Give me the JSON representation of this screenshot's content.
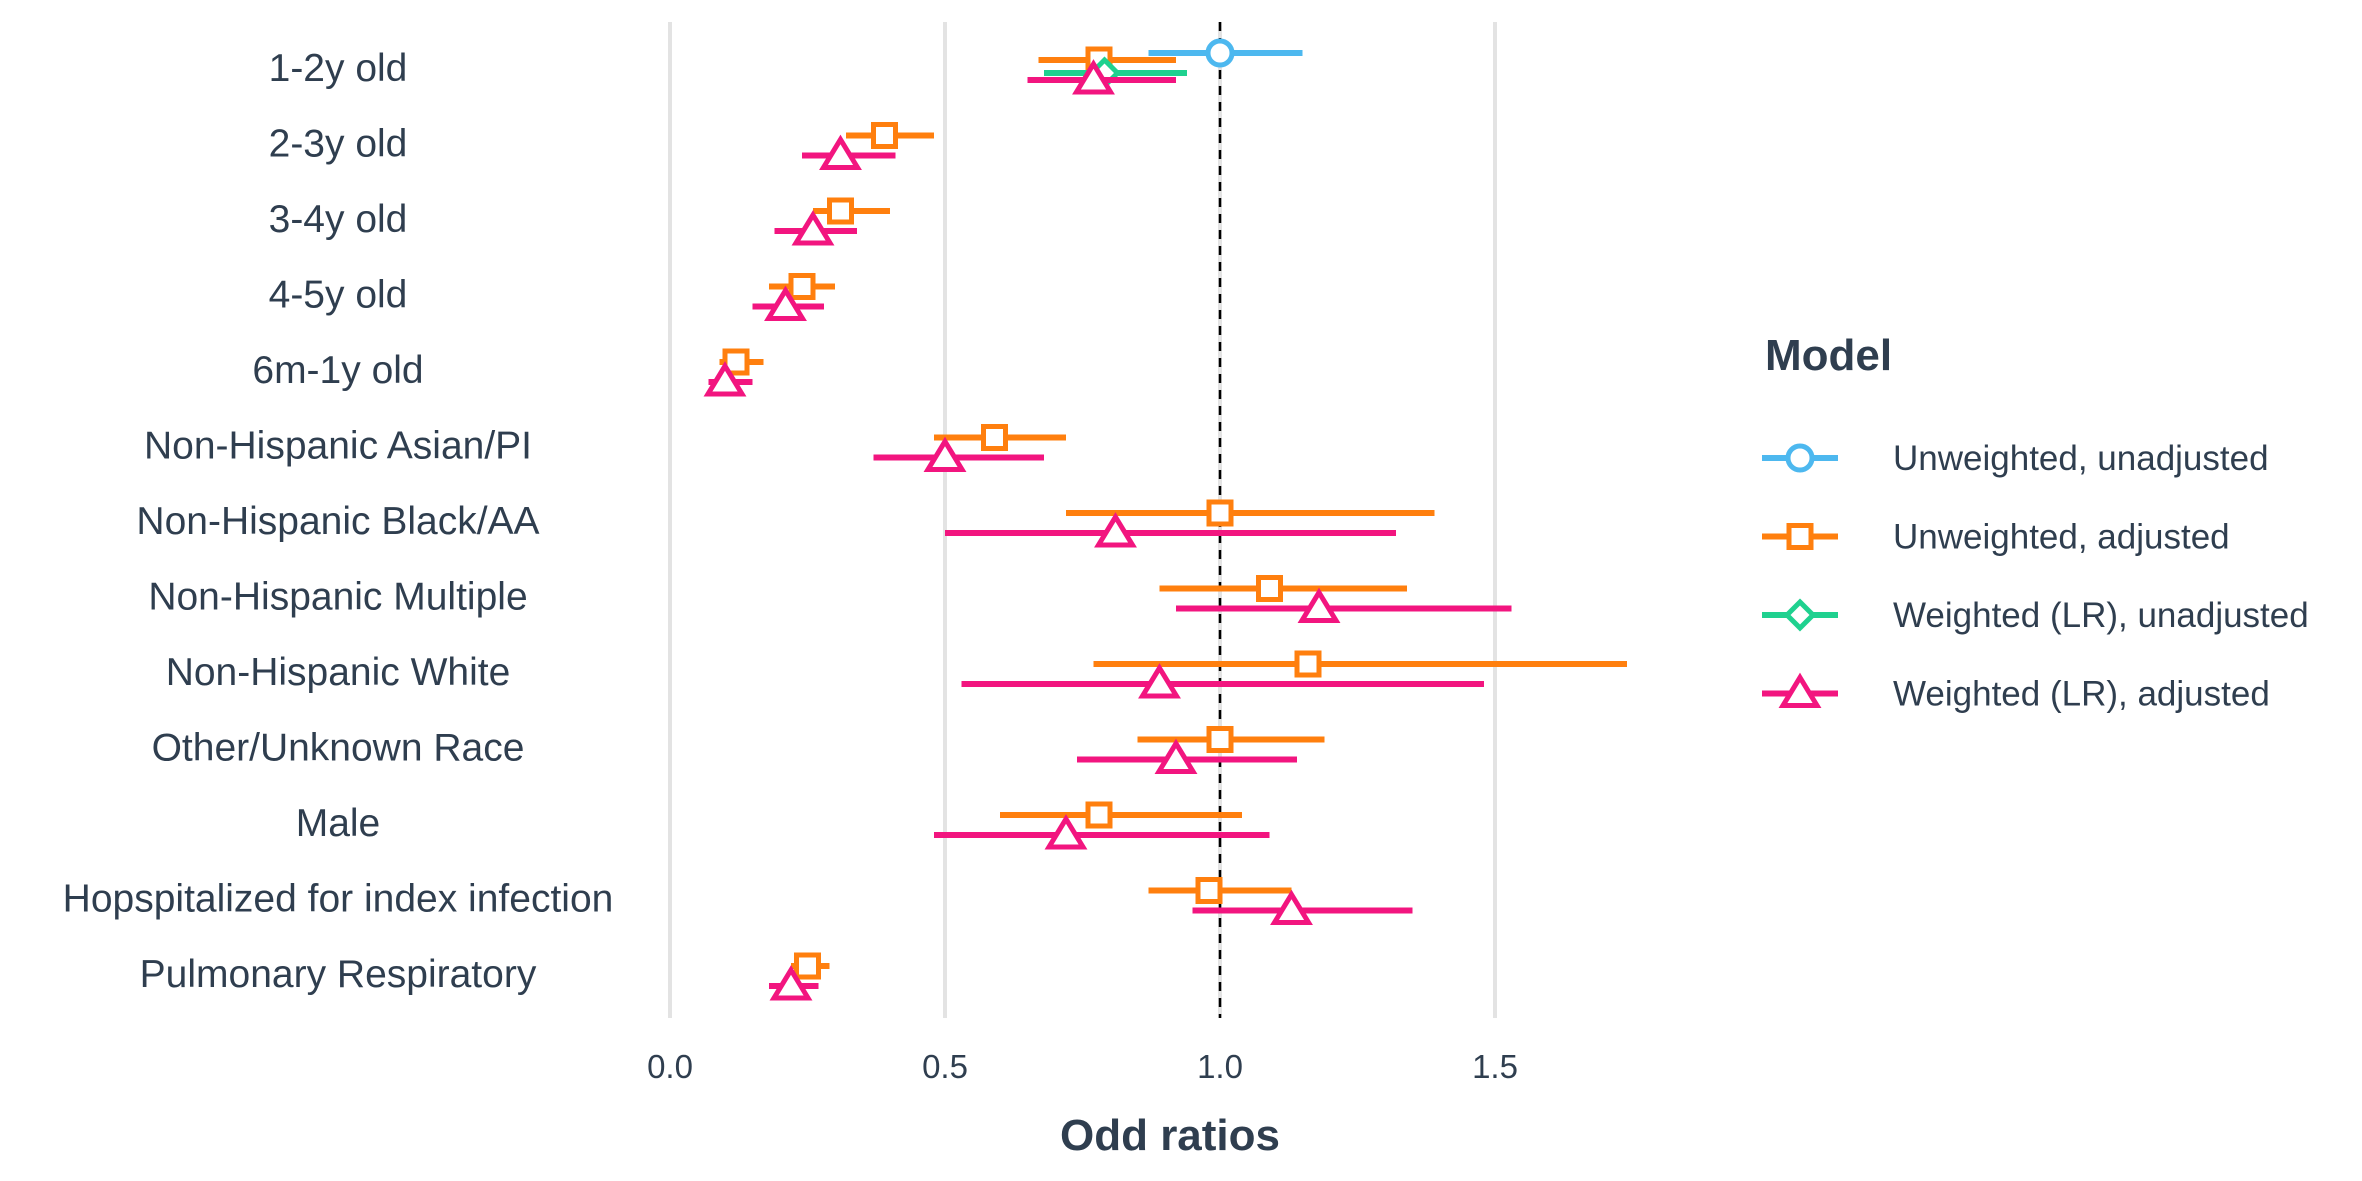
{
  "chart_data": {
    "type": "forest",
    "title": "",
    "xlabel": "Odd ratios",
    "ylabel": "",
    "xlim": [
      0,
      1.75
    ],
    "x_ticks": [
      0.0,
      0.5,
      1.0,
      1.5
    ],
    "x_tick_labels": [
      "0.0",
      "0.5",
      "1.0",
      "1.5"
    ],
    "reference_line": 1.0,
    "grid": "vertical major",
    "categories": [
      "1-2y old",
      "2-3y old",
      "3-4y old",
      "4-5y old",
      "6m-1y old",
      "Non-Hispanic Asian/PI",
      "Non-Hispanic Black/AA",
      "Non-Hispanic Multiple",
      "Non-Hispanic White",
      "Other/Unknown Race",
      "Male",
      "Hopspitalized for index infection",
      "Pulmonary Respiratory"
    ],
    "legend_title": "Model",
    "legend_position": "right",
    "series": [
      {
        "name": "Unweighted, unadjusted",
        "color": "#4db8ef",
        "marker": "circle",
        "points": [
          {
            "category": "1-2y old",
            "estimate": 1.0,
            "low": 0.87,
            "high": 1.15
          }
        ]
      },
      {
        "name": "Unweighted, adjusted",
        "color": "#ff7f0e",
        "marker": "square",
        "points": [
          {
            "category": "1-2y old",
            "estimate": 0.78,
            "low": 0.67,
            "high": 0.92
          },
          {
            "category": "2-3y old",
            "estimate": 0.39,
            "low": 0.32,
            "high": 0.48
          },
          {
            "category": "3-4y old",
            "estimate": 0.31,
            "low": 0.26,
            "high": 0.4
          },
          {
            "category": "4-5y old",
            "estimate": 0.24,
            "low": 0.18,
            "high": 0.3
          },
          {
            "category": "6m-1y old",
            "estimate": 0.12,
            "low": 0.09,
            "high": 0.17
          },
          {
            "category": "Non-Hispanic Asian/PI",
            "estimate": 0.59,
            "low": 0.48,
            "high": 0.72
          },
          {
            "category": "Non-Hispanic Black/AA",
            "estimate": 1.0,
            "low": 0.72,
            "high": 1.39
          },
          {
            "category": "Non-Hispanic Multiple",
            "estimate": 1.09,
            "low": 0.89,
            "high": 1.34
          },
          {
            "category": "Non-Hispanic White",
            "estimate": 1.16,
            "low": 0.77,
            "high": 1.74
          },
          {
            "category": "Other/Unknown Race",
            "estimate": 1.0,
            "low": 0.85,
            "high": 1.19
          },
          {
            "category": "Male",
            "estimate": 0.78,
            "low": 0.6,
            "high": 1.04
          },
          {
            "category": "Hopspitalized for index infection",
            "estimate": 0.98,
            "low": 0.87,
            "high": 1.13
          },
          {
            "category": "Pulmonary Respiratory",
            "estimate": 0.25,
            "low": 0.22,
            "high": 0.29
          }
        ]
      },
      {
        "name": "Weighted (LR), unadjusted",
        "color": "#1fd18f",
        "marker": "diamond",
        "points": [
          {
            "category": "1-2y old",
            "estimate": 0.79,
            "low": 0.68,
            "high": 0.94
          }
        ]
      },
      {
        "name": "Weighted (LR), adjusted",
        "color": "#f2157f",
        "marker": "triangle",
        "points": [
          {
            "category": "1-2y old",
            "estimate": 0.77,
            "low": 0.65,
            "high": 0.92
          },
          {
            "category": "2-3y old",
            "estimate": 0.31,
            "low": 0.24,
            "high": 0.41
          },
          {
            "category": "3-4y old",
            "estimate": 0.26,
            "low": 0.19,
            "high": 0.34
          },
          {
            "category": "4-5y old",
            "estimate": 0.21,
            "low": 0.15,
            "high": 0.28
          },
          {
            "category": "6m-1y old",
            "estimate": 0.1,
            "low": 0.07,
            "high": 0.15
          },
          {
            "category": "Non-Hispanic Asian/PI",
            "estimate": 0.5,
            "low": 0.37,
            "high": 0.68
          },
          {
            "category": "Non-Hispanic Black/AA",
            "estimate": 0.81,
            "low": 0.5,
            "high": 1.32
          },
          {
            "category": "Non-Hispanic Multiple",
            "estimate": 1.18,
            "low": 0.92,
            "high": 1.53
          },
          {
            "category": "Non-Hispanic White",
            "estimate": 0.89,
            "low": 0.53,
            "high": 1.48
          },
          {
            "category": "Other/Unknown Race",
            "estimate": 0.92,
            "low": 0.74,
            "high": 1.14
          },
          {
            "category": "Male",
            "estimate": 0.72,
            "low": 0.48,
            "high": 1.09
          },
          {
            "category": "Hopspitalized for index infection",
            "estimate": 1.13,
            "low": 0.95,
            "high": 1.35
          },
          {
            "category": "Pulmonary Respiratory",
            "estimate": 0.22,
            "low": 0.18,
            "high": 0.27
          }
        ]
      }
    ]
  }
}
